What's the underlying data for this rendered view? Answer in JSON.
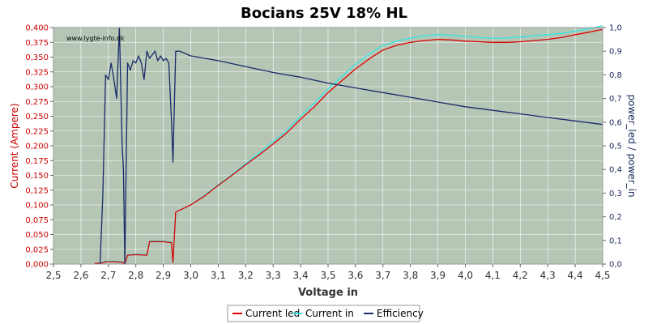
{
  "chart_data": {
    "type": "line",
    "title": "Bocians 25V 18% HL",
    "watermark": "www.lygte-info.dk",
    "xlabel": "Voltage in",
    "ylabel_left": "Current (Ampere)",
    "ylabel_right": "power_led / power_in",
    "xlim": [
      2.5,
      4.5
    ],
    "ylim_left": [
      0,
      0.4
    ],
    "ylim_right": [
      0,
      1.0
    ],
    "x_ticks": [
      "2,5",
      "2,6",
      "2,7",
      "2,8",
      "2,9",
      "3,0",
      "3,1",
      "3,2",
      "3,3",
      "3,4",
      "3,5",
      "3,6",
      "3,7",
      "3,8",
      "3,9",
      "4,0",
      "4,1",
      "4,2",
      "4,3",
      "4,4",
      "4,5"
    ],
    "y_left_ticks": [
      "0,000",
      "0,025",
      "0,050",
      "0,075",
      "0,100",
      "0,125",
      "0,150",
      "0,175",
      "0,200",
      "0,225",
      "0,250",
      "0,275",
      "0,300",
      "0,325",
      "0,350",
      "0,375",
      "0,400"
    ],
    "y_right_ticks": [
      "0,0",
      "0,1",
      "0,2",
      "0,3",
      "0,4",
      "0,5",
      "0,6",
      "0,7",
      "0,8",
      "0,9",
      "1,0"
    ],
    "grid": true,
    "legend_position": "bottom",
    "colors": {
      "plot_bg": "#b5c6b5",
      "grid": "#ffffff",
      "current_led": "#dd0000",
      "current_in": "#33e5e5",
      "efficiency": "#1a2a6a",
      "left_axis": "#cc0000",
      "right_axis": "#1a2a5a"
    },
    "series": [
      {
        "name": "Current led",
        "axis": "left",
        "points": [
          [
            2.65,
            0.001
          ],
          [
            2.68,
            0.002
          ],
          [
            2.69,
            0.004
          ],
          [
            2.72,
            0.004
          ],
          [
            2.75,
            0.003
          ],
          [
            2.76,
            0.0
          ],
          [
            2.77,
            0.015
          ],
          [
            2.8,
            0.016
          ],
          [
            2.84,
            0.015
          ],
          [
            2.85,
            0.038
          ],
          [
            2.9,
            0.038
          ],
          [
            2.93,
            0.036
          ],
          [
            2.935,
            0.003
          ],
          [
            2.945,
            0.088
          ],
          [
            3.0,
            0.1
          ],
          [
            3.05,
            0.115
          ],
          [
            3.1,
            0.133
          ],
          [
            3.15,
            0.15
          ],
          [
            3.2,
            0.168
          ],
          [
            3.25,
            0.185
          ],
          [
            3.3,
            0.203
          ],
          [
            3.35,
            0.222
          ],
          [
            3.4,
            0.245
          ],
          [
            3.45,
            0.266
          ],
          [
            3.5,
            0.29
          ],
          [
            3.55,
            0.31
          ],
          [
            3.6,
            0.33
          ],
          [
            3.65,
            0.347
          ],
          [
            3.7,
            0.362
          ],
          [
            3.75,
            0.37
          ],
          [
            3.8,
            0.375
          ],
          [
            3.85,
            0.378
          ],
          [
            3.9,
            0.38
          ],
          [
            3.95,
            0.379
          ],
          [
            4.0,
            0.377
          ],
          [
            4.05,
            0.376
          ],
          [
            4.1,
            0.375
          ],
          [
            4.15,
            0.375
          ],
          [
            4.2,
            0.376
          ],
          [
            4.25,
            0.378
          ],
          [
            4.3,
            0.38
          ],
          [
            4.35,
            0.383
          ],
          [
            4.4,
            0.388
          ],
          [
            4.45,
            0.392
          ],
          [
            4.5,
            0.397
          ]
        ]
      },
      {
        "name": "Current in",
        "axis": "left",
        "points": [
          [
            2.65,
            0.001
          ],
          [
            2.68,
            0.003
          ],
          [
            2.69,
            0.005
          ],
          [
            2.72,
            0.005
          ],
          [
            2.75,
            0.004
          ],
          [
            2.76,
            0.0
          ],
          [
            2.77,
            0.016
          ],
          [
            2.8,
            0.017
          ],
          [
            2.84,
            0.016
          ],
          [
            2.85,
            0.039
          ],
          [
            2.9,
            0.039
          ],
          [
            2.93,
            0.037
          ],
          [
            2.935,
            0.003
          ],
          [
            2.945,
            0.088
          ],
          [
            3.0,
            0.1
          ],
          [
            3.05,
            0.116
          ],
          [
            3.1,
            0.134
          ],
          [
            3.15,
            0.151
          ],
          [
            3.2,
            0.17
          ],
          [
            3.25,
            0.188
          ],
          [
            3.3,
            0.207
          ],
          [
            3.35,
            0.226
          ],
          [
            3.4,
            0.25
          ],
          [
            3.45,
            0.272
          ],
          [
            3.5,
            0.296
          ],
          [
            3.55,
            0.317
          ],
          [
            3.6,
            0.338
          ],
          [
            3.65,
            0.355
          ],
          [
            3.7,
            0.37
          ],
          [
            3.75,
            0.377
          ],
          [
            3.8,
            0.382
          ],
          [
            3.85,
            0.386
          ],
          [
            3.9,
            0.388
          ],
          [
            3.95,
            0.387
          ],
          [
            4.0,
            0.385
          ],
          [
            4.05,
            0.383
          ],
          [
            4.1,
            0.382
          ],
          [
            4.15,
            0.382
          ],
          [
            4.2,
            0.384
          ],
          [
            4.25,
            0.386
          ],
          [
            4.3,
            0.388
          ],
          [
            4.35,
            0.39
          ],
          [
            4.4,
            0.394
          ],
          [
            4.45,
            0.398
          ],
          [
            4.5,
            0.403
          ]
        ]
      },
      {
        "name": "Efficiency",
        "axis": "right",
        "points": [
          [
            2.67,
            0.0
          ],
          [
            2.68,
            0.3
          ],
          [
            2.69,
            0.8
          ],
          [
            2.7,
            0.78
          ],
          [
            2.71,
            0.85
          ],
          [
            2.72,
            0.78
          ],
          [
            2.73,
            0.7
          ],
          [
            2.74,
            1.0
          ],
          [
            2.75,
            0.5
          ],
          [
            2.755,
            0.4
          ],
          [
            2.76,
            0.0
          ],
          [
            2.77,
            0.85
          ],
          [
            2.78,
            0.82
          ],
          [
            2.79,
            0.86
          ],
          [
            2.8,
            0.85
          ],
          [
            2.81,
            0.88
          ],
          [
            2.82,
            0.85
          ],
          [
            2.83,
            0.78
          ],
          [
            2.84,
            0.9
          ],
          [
            2.85,
            0.87
          ],
          [
            2.87,
            0.9
          ],
          [
            2.88,
            0.86
          ],
          [
            2.89,
            0.88
          ],
          [
            2.9,
            0.86
          ],
          [
            2.91,
            0.87
          ],
          [
            2.92,
            0.85
          ],
          [
            2.93,
            0.6
          ],
          [
            2.935,
            0.43
          ],
          [
            2.945,
            0.9
          ],
          [
            2.96,
            0.9
          ],
          [
            3.0,
            0.88
          ],
          [
            3.1,
            0.86
          ],
          [
            3.2,
            0.835
          ],
          [
            3.3,
            0.81
          ],
          [
            3.4,
            0.79
          ],
          [
            3.5,
            0.765
          ],
          [
            3.6,
            0.745
          ],
          [
            3.7,
            0.725
          ],
          [
            3.8,
            0.705
          ],
          [
            3.9,
            0.685
          ],
          [
            4.0,
            0.665
          ],
          [
            4.1,
            0.65
          ],
          [
            4.2,
            0.635
          ],
          [
            4.3,
            0.62
          ],
          [
            4.4,
            0.605
          ],
          [
            4.5,
            0.59
          ]
        ]
      }
    ]
  }
}
